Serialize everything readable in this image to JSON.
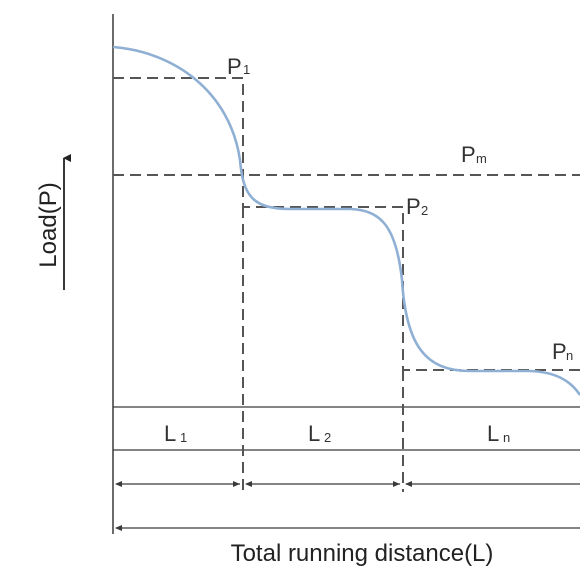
{
  "labels": {
    "p1_main": "P",
    "p1_sub": "1",
    "pm_main": "P",
    "pm_sub": "m",
    "p2_main": "P",
    "p2_sub": "2",
    "pn_main": "P",
    "pn_sub": "n",
    "l1_main": "L",
    "l1_sub": "1",
    "l2_main": "L",
    "l2_sub": "2",
    "ln_main": "L",
    "ln_sub": "n"
  },
  "axes": {
    "y_label": "Load(P)",
    "x_label": "Total running distance(L)"
  },
  "colors": {
    "curve": "#8fb0d4",
    "lines": "#3a3a3a",
    "dashed": "#555555"
  }
}
